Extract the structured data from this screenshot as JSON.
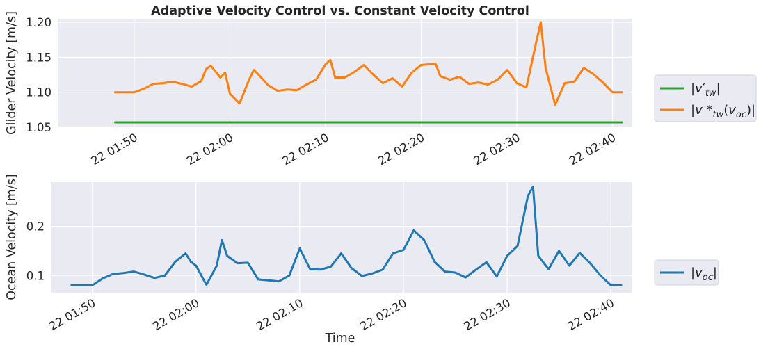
{
  "chart_data": [
    {
      "type": "line",
      "title": "Adaptive Velocity Control vs. Constant Velocity Control",
      "xlabel": "",
      "ylabel": "Glider Velocity [m/s]",
      "xlim": [
        "22 01:42",
        "22 02:42"
      ],
      "ylim": [
        1.05,
        1.205
      ],
      "x_ticks": [
        "22 01:50",
        "22 02:00",
        "22 02:10",
        "22 02:20",
        "22 02:30",
        "22 02:40"
      ],
      "y_ticks": [
        "1.05",
        "1.10",
        "1.15",
        "1.20"
      ],
      "grid": true,
      "legend_position": "right",
      "series": [
        {
          "name": "|v′_tw|",
          "color": "#2ca02c",
          "x": [
            "22 01:48",
            "22 02:41"
          ],
          "y": [
            1.057,
            1.057
          ]
        },
        {
          "name": "|v*_tw(v_oc)|",
          "color": "#ff7f0e",
          "x": [
            "22 01:48:00",
            "22 01:50:00",
            "22 01:51:00",
            "22 01:52:00",
            "22 01:53:00",
            "22 01:54:00",
            "22 01:55:00",
            "22 01:56:00",
            "22 01:57:00",
            "22 01:57:30",
            "22 01:58:00",
            "22 01:59:00",
            "22 01:59:30",
            "22 02:00:00",
            "22 02:01:00",
            "22 02:02:00",
            "22 02:02:30",
            "22 02:03:00",
            "22 02:04:00",
            "22 02:05:00",
            "22 02:06:00",
            "22 02:07:00",
            "22 02:08:00",
            "22 02:09:00",
            "22 02:10:00",
            "22 02:10:30",
            "22 02:11:00",
            "22 02:12:00",
            "22 02:13:00",
            "22 02:14:00",
            "22 02:15:00",
            "22 02:16:00",
            "22 02:17:00",
            "22 02:18:00",
            "22 02:19:00",
            "22 02:20:00",
            "22 02:21:00",
            "22 02:21:30",
            "22 02:22:00",
            "22 02:23:00",
            "22 02:24:00",
            "22 02:25:00",
            "22 02:26:00",
            "22 02:27:00",
            "22 02:28:00",
            "22 02:29:00",
            "22 02:30:00",
            "22 02:31:00",
            "22 02:32:00",
            "22 02:32:30",
            "22 02:33:00",
            "22 02:34:00",
            "22 02:35:00",
            "22 02:36:00",
            "22 02:37:00",
            "22 02:38:00",
            "22 02:39:00",
            "22 02:40:00",
            "22 02:41:00"
          ],
          "y": [
            1.1,
            1.1,
            1.105,
            1.112,
            1.113,
            1.115,
            1.112,
            1.108,
            1.116,
            1.133,
            1.138,
            1.121,
            1.128,
            1.098,
            1.084,
            1.118,
            1.132,
            1.125,
            1.11,
            1.102,
            1.104,
            1.103,
            1.111,
            1.118,
            1.14,
            1.146,
            1.121,
            1.121,
            1.129,
            1.139,
            1.125,
            1.113,
            1.12,
            1.108,
            1.128,
            1.139,
            1.14,
            1.141,
            1.123,
            1.118,
            1.122,
            1.112,
            1.114,
            1.111,
            1.118,
            1.132,
            1.113,
            1.107,
            1.17,
            1.2,
            1.135,
            1.082,
            1.113,
            1.115,
            1.135,
            1.126,
            1.114,
            1.1,
            1.1
          ]
        }
      ]
    },
    {
      "type": "line",
      "title": "",
      "xlabel": "Time",
      "ylabel": "Ocean Velocity [m/s]",
      "xlim": [
        "22 01:46",
        "22 02:42"
      ],
      "ylim": [
        0.065,
        0.29
      ],
      "x_ticks": [
        "22 01:50",
        "22 02:00",
        "22 02:10",
        "22 02:20",
        "22 02:30",
        "22 02:40"
      ],
      "y_ticks": [
        "0.1",
        "0.2"
      ],
      "grid": true,
      "legend_position": "right",
      "series": [
        {
          "name": "|v_oc|",
          "color": "#1f77b4",
          "x": [
            "22 01:48:00",
            "22 01:50:00",
            "22 01:51:00",
            "22 01:52:00",
            "22 01:53:00",
            "22 01:54:00",
            "22 01:55:00",
            "22 01:56:00",
            "22 01:57:00",
            "22 01:58:00",
            "22 01:59:00",
            "22 01:59:30",
            "22 02:00:00",
            "22 02:01:00",
            "22 02:02:00",
            "22 02:02:30",
            "22 02:03:00",
            "22 02:04:00",
            "22 02:05:00",
            "22 02:06:00",
            "22 02:07:00",
            "22 02:08:00",
            "22 02:09:00",
            "22 02:10:00",
            "22 02:11:00",
            "22 02:12:00",
            "22 02:13:00",
            "22 02:14:00",
            "22 02:15:00",
            "22 02:16:00",
            "22 02:17:00",
            "22 02:18:00",
            "22 02:19:00",
            "22 02:20:00",
            "22 02:21:00",
            "22 02:22:00",
            "22 02:23:00",
            "22 02:24:00",
            "22 02:25:00",
            "22 02:26:00",
            "22 02:27:00",
            "22 02:28:00",
            "22 02:29:00",
            "22 02:30:00",
            "22 02:31:00",
            "22 02:32:00",
            "22 02:32:30",
            "22 02:33:00",
            "22 02:34:00",
            "22 02:35:00",
            "22 02:36:00",
            "22 02:37:00",
            "22 02:38:00",
            "22 02:39:00",
            "22 02:40:00",
            "22 02:41:00"
          ],
          "y": [
            0.08,
            0.08,
            0.094,
            0.103,
            0.105,
            0.108,
            0.102,
            0.095,
            0.1,
            0.128,
            0.145,
            0.128,
            0.12,
            0.081,
            0.12,
            0.172,
            0.14,
            0.125,
            0.126,
            0.092,
            0.09,
            0.088,
            0.1,
            0.155,
            0.113,
            0.112,
            0.118,
            0.145,
            0.115,
            0.099,
            0.104,
            0.112,
            0.145,
            0.152,
            0.192,
            0.172,
            0.128,
            0.108,
            0.106,
            0.096,
            0.112,
            0.127,
            0.098,
            0.14,
            0.16,
            0.262,
            0.281,
            0.14,
            0.113,
            0.15,
            0.12,
            0.146,
            0.125,
            0.1,
            0.08,
            0.08
          ]
        }
      ]
    }
  ]
}
